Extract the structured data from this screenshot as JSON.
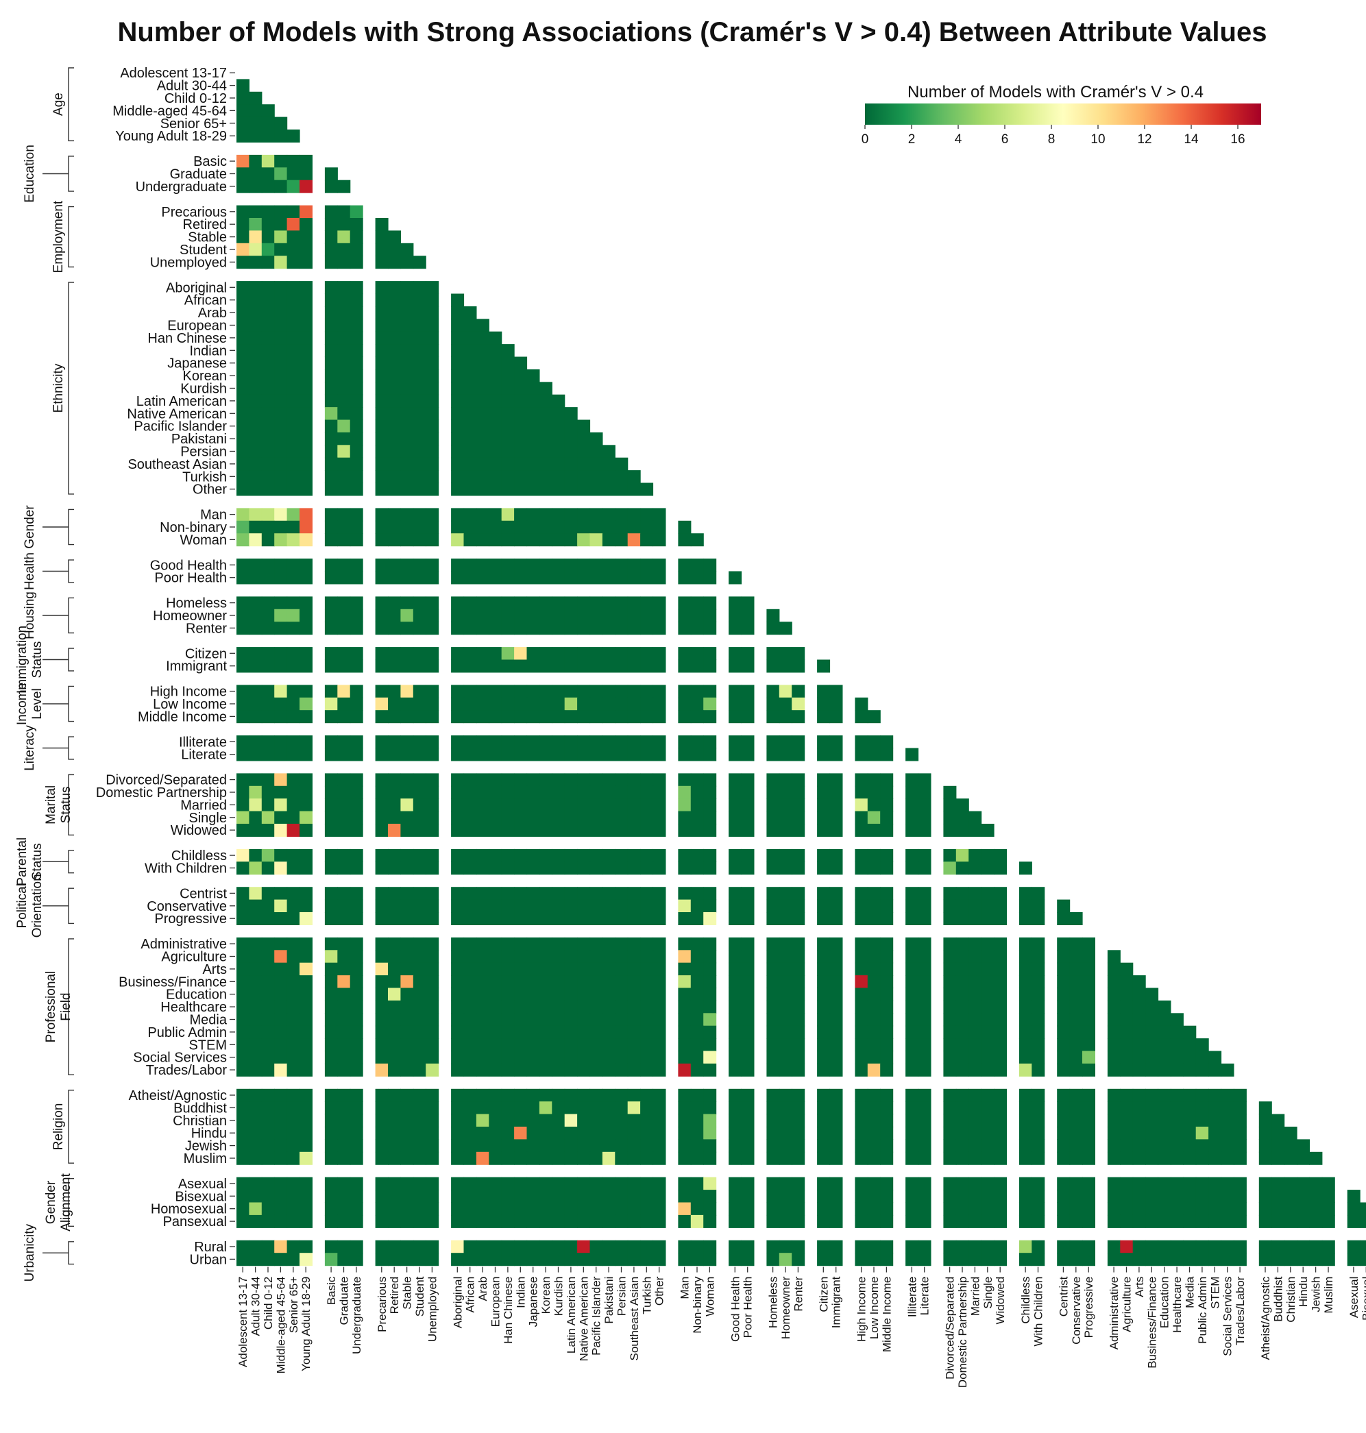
{
  "chart_data": {
    "type": "heatmap",
    "title": "Number of Models with Strong Associations (Cramér's V > 0.4) Between Attribute Values",
    "colorbar": {
      "title": "Number of Models with Cramér's V > 0.4",
      "min": 0,
      "max": 17,
      "ticks": [
        0,
        2,
        4,
        6,
        8,
        10,
        12,
        14,
        16
      ],
      "colormap": [
        "#006837",
        "#1a9850",
        "#66bd63",
        "#a6d96a",
        "#d9ef8b",
        "#ffffbf",
        "#fee08b",
        "#fdae61",
        "#f46d43",
        "#d73027",
        "#a50026"
      ]
    },
    "groups": [
      {
        "name": "Age",
        "values": [
          "Adolescent 13-17",
          "Adult 30-44",
          "Child 0-12",
          "Middle-aged 45-64",
          "Senior 65+",
          "Young Adult 18-29"
        ]
      },
      {
        "name": "Education",
        "values": [
          "Basic",
          "Graduate",
          "Undergraduate"
        ]
      },
      {
        "name": "Employment",
        "values": [
          "Precarious",
          "Retired",
          "Stable",
          "Student",
          "Unemployed"
        ]
      },
      {
        "name": "Ethnicity",
        "values": [
          "Aboriginal",
          "African",
          "Arab",
          "European",
          "Han Chinese",
          "Indian",
          "Japanese",
          "Korean",
          "Kurdish",
          "Latin American",
          "Native American",
          "Pacific Islander",
          "Pakistani",
          "Persian",
          "Southeast Asian",
          "Turkish",
          "Other"
        ]
      },
      {
        "name": "Gender",
        "values": [
          "Man",
          "Non-binary",
          "Woman"
        ]
      },
      {
        "name": "Health",
        "values": [
          "Good Health",
          "Poor Health"
        ]
      },
      {
        "name": "Housing",
        "values": [
          "Homeless",
          "Homeowner",
          "Renter"
        ]
      },
      {
        "name": "Immigration Status",
        "values": [
          "Citizen",
          "Immigrant"
        ]
      },
      {
        "name": "Income Level",
        "values": [
          "High Income",
          "Low Income",
          "Middle Income"
        ]
      },
      {
        "name": "Literacy",
        "values": [
          "Illiterate",
          "Literate"
        ]
      },
      {
        "name": "Marital Status",
        "values": [
          "Divorced/Separated",
          "Domestic Partnership",
          "Married",
          "Single",
          "Widowed"
        ]
      },
      {
        "name": "Parental Status",
        "values": [
          "Childless",
          "With Children"
        ]
      },
      {
        "name": "Political Orientation",
        "values": [
          "Centrist",
          "Conservative",
          "Progressive"
        ]
      },
      {
        "name": "Professional Field",
        "values": [
          "Administrative",
          "Agriculture",
          "Arts",
          "Business/Finance",
          "Education",
          "Healthcare",
          "Media",
          "Public Admin",
          "STEM",
          "Social Services",
          "Trades/Labor"
        ]
      },
      {
        "name": "Religion",
        "values": [
          "Atheist/Agnostic",
          "Buddhist",
          "Christian",
          "Hindu",
          "Jewish",
          "Muslim"
        ]
      },
      {
        "name": "Gender Alignment",
        "values": [
          "Asexual",
          "Bisexual",
          "Homosexual",
          "Pansexual"
        ]
      },
      {
        "name": "Urbanicity",
        "values": [
          "Rural",
          "Urban"
        ]
      }
    ],
    "default_value": 0,
    "highlights": [
      [
        "Basic",
        "Adolescent 13-17",
        13
      ],
      [
        "Basic",
        "Child 0-12",
        6
      ],
      [
        "Graduate",
        "Middle-aged 45-64",
        3
      ],
      [
        "Undergraduate",
        "Senior 65+",
        2
      ],
      [
        "Undergraduate",
        "Young Adult 18-29",
        16
      ],
      [
        "Graduate",
        "Basic",
        0
      ],
      [
        "Precarious",
        "Young Adult 18-29",
        14
      ],
      [
        "Retired",
        "Adult 30-44",
        3
      ],
      [
        "Retired",
        "Senior 65+",
        14
      ],
      [
        "Stable",
        "Adult 30-44",
        10
      ],
      [
        "Stable",
        "Middle-aged 45-64",
        5
      ],
      [
        "Student",
        "Adolescent 13-17",
        11
      ],
      [
        "Student",
        "Adult 30-44",
        7
      ],
      [
        "Student",
        "Child 0-12",
        2
      ],
      [
        "Unemployed",
        "Middle-aged 45-64",
        6
      ],
      [
        "Stable",
        "Graduate",
        5
      ],
      [
        "Precarious",
        "Undergraduate",
        2
      ],
      [
        "Persian",
        "Graduate",
        6
      ],
      [
        "Pacific Islander",
        "Graduate",
        4
      ],
      [
        "Native American",
        "Basic",
        4
      ],
      [
        "Man",
        "Adolescent 13-17",
        5
      ],
      [
        "Man",
        "Adult 30-44",
        6
      ],
      [
        "Man",
        "Child 0-12",
        6
      ],
      [
        "Man",
        "Middle-aged 45-64",
        8
      ],
      [
        "Man",
        "Senior 65+",
        4
      ],
      [
        "Man",
        "Young Adult 18-29",
        14
      ],
      [
        "Non-binary",
        "Adolescent 13-17",
        3
      ],
      [
        "Non-binary",
        "Young Adult 18-29",
        14
      ],
      [
        "Woman",
        "Adolescent 13-17",
        4
      ],
      [
        "Woman",
        "Adult 30-44",
        8
      ],
      [
        "Woman",
        "Middle-aged 45-64",
        5
      ],
      [
        "Woman",
        "Senior 65+",
        6
      ],
      [
        "Woman",
        "Young Adult 18-29",
        10
      ],
      [
        "Man",
        "Han Chinese",
        6
      ],
      [
        "Woman",
        "Aboriginal",
        6
      ],
      [
        "Woman",
        "Pacific Islander",
        6
      ],
      [
        "Woman",
        "Native American",
        5
      ],
      [
        "Woman",
        "Southeast Asian",
        13
      ],
      [
        "Homeowner",
        "Middle-aged 45-64",
        4
      ],
      [
        "Homeowner",
        "Senior 65+",
        4
      ],
      [
        "Homeowner",
        "Stable",
        4
      ],
      [
        "Citizen",
        "Han Chinese",
        4
      ],
      [
        "Citizen",
        "Indian",
        10
      ],
      [
        "High Income",
        "Middle-aged 45-64",
        7
      ],
      [
        "High Income",
        "Graduate",
        10
      ],
      [
        "High Income",
        "Stable",
        10
      ],
      [
        "Low Income",
        "Basic",
        7
      ],
      [
        "Low Income",
        "Precarious",
        10
      ],
      [
        "Low Income",
        "Young Adult 18-29",
        4
      ],
      [
        "Low Income",
        "Latin American",
        5
      ],
      [
        "High Income",
        "Homeowner",
        7
      ],
      [
        "Low Income",
        "Renter",
        7
      ],
      [
        "Low Income",
        "Woman",
        4
      ],
      [
        "Divorced/Separated",
        "Middle-aged 45-64",
        11
      ],
      [
        "Domestic Partnership",
        "Adult 30-44",
        5
      ],
      [
        "Married",
        "Adult 30-44",
        7
      ],
      [
        "Married",
        "Middle-aged 45-64",
        7
      ],
      [
        "Single",
        "Adolescent 13-17",
        5
      ],
      [
        "Single",
        "Child 0-12",
        5
      ],
      [
        "Single",
        "Young Adult 18-29",
        5
      ],
      [
        "Widowed",
        "Middle-aged 45-64",
        9
      ],
      [
        "Widowed",
        "Senior 65+",
        16
      ],
      [
        "Widowed",
        "Retired",
        13
      ],
      [
        "Married",
        "Stable",
        7
      ],
      [
        "Married",
        "High Income",
        7
      ],
      [
        "Single",
        "Low Income",
        4
      ],
      [
        "Married",
        "Man",
        4
      ],
      [
        "Domestic Partnership",
        "Man",
        4
      ],
      [
        "Childless",
        "Adolescent 13-17",
        9
      ],
      [
        "Childless",
        "Child 0-12",
        4
      ],
      [
        "With Children",
        "Middle-aged 45-64",
        9
      ],
      [
        "With Children",
        "Adult 30-44",
        5
      ],
      [
        "Childless",
        "Domestic Partnership",
        5
      ],
      [
        "With Children",
        "Divorced/Separated",
        4
      ],
      [
        "Centrist",
        "Adult 30-44",
        7
      ],
      [
        "Conservative",
        "Middle-aged 45-64",
        7
      ],
      [
        "Progressive",
        "Young Adult 18-29",
        8
      ],
      [
        "Conservative",
        "Man",
        7
      ],
      [
        "Progressive",
        "Woman",
        8
      ],
      [
        "Agriculture",
        "Middle-aged 45-64",
        13
      ],
      [
        "Arts",
        "Young Adult 18-29",
        10
      ],
      [
        "Agriculture",
        "Basic",
        6
      ],
      [
        "Arts",
        "Precarious",
        10
      ],
      [
        "Business/Finance",
        "Graduate",
        12
      ],
      [
        "Business/Finance",
        "Stable",
        12
      ],
      [
        "Education",
        "Retired",
        7
      ],
      [
        "Agriculture",
        "Man",
        11
      ],
      [
        "Business/Finance",
        "Man",
        6
      ],
      [
        "Trades/Labor",
        "Man",
        16
      ],
      [
        "Social Services",
        "Woman",
        8
      ],
      [
        "Media",
        "Woman",
        4
      ],
      [
        "Business/Finance",
        "High Income",
        16
      ],
      [
        "Trades/Labor",
        "Low Income",
        11
      ],
      [
        "Trades/Labor",
        "Precarious",
        11
      ],
      [
        "Trades/Labor",
        "Middle-aged 45-64",
        9
      ],
      [
        "Trades/Labor",
        "Unemployed",
        6
      ],
      [
        "Trades/Labor",
        "Childless",
        6
      ],
      [
        "Social Services",
        "Progressive",
        4
      ],
      [
        "Christian",
        "Latin American",
        8
      ],
      [
        "Christian",
        "Arab",
        5
      ],
      [
        "Hindu",
        "Indian",
        13
      ],
      [
        "Buddhist",
        "Southeast Asian",
        7
      ],
      [
        "Buddhist",
        "Korean",
        5
      ],
      [
        "Muslim",
        "Arab",
        13
      ],
      [
        "Muslim",
        "Pakistani",
        7
      ],
      [
        "Muslim",
        "Young Adult 18-29",
        7
      ],
      [
        "Hindu",
        "Woman",
        4
      ],
      [
        "Christian",
        "Woman",
        4
      ],
      [
        "Public Admin",
        "Hindu",
        5
      ],
      [
        "Asexual",
        "Woman",
        7
      ],
      [
        "Homosexual",
        "Man",
        11
      ],
      [
        "Pansexual",
        "Non-binary",
        7
      ],
      [
        "Homosexual",
        "Adult 30-44",
        5
      ],
      [
        "Rural",
        "Middle-aged 45-64",
        11
      ],
      [
        "Rural",
        "Native American",
        16
      ],
      [
        "Rural",
        "Aboriginal",
        9
      ],
      [
        "Rural",
        "Agriculture",
        16
      ],
      [
        "Urban",
        "Young Adult 18-29",
        8
      ],
      [
        "Urban",
        "Basic",
        3
      ],
      [
        "Rural",
        "Childless",
        5
      ],
      [
        "Urban",
        "Homeowner",
        4
      ]
    ]
  }
}
